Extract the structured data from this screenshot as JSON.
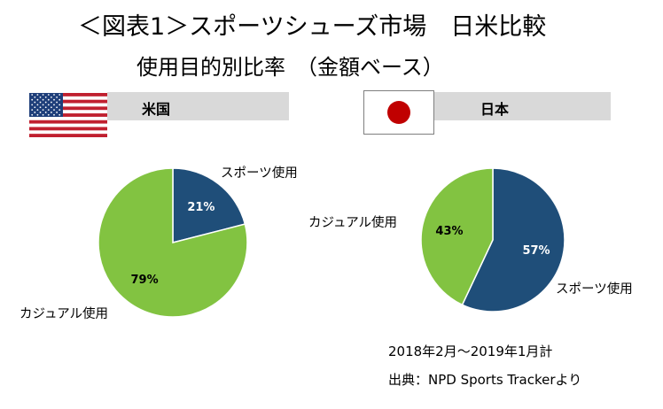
{
  "title": {
    "line1": "＜図表1＞スポーツシューズ市場　日米比較",
    "line2": "使用目的別比率　（金額ベース）"
  },
  "colors": {
    "sports": "#1f4e79",
    "casual": "#82c341",
    "header_bar": "#d9d9d9",
    "jp_flag_red": "#c00000"
  },
  "chart_data": [
    {
      "type": "pie",
      "title": "米国",
      "flag_icon": "us-flag-icon",
      "slices": [
        {
          "label": "スポーツ使用",
          "value": 21,
          "value_label": "21%",
          "color": "#1f4e79"
        },
        {
          "label": "カジュアル使用",
          "value": 79,
          "value_label": "79%",
          "color": "#82c341"
        }
      ]
    },
    {
      "type": "pie",
      "title": "日本",
      "flag_icon": "jp-flag-icon",
      "slices": [
        {
          "label": "スポーツ使用",
          "value": 57,
          "value_label": "57%",
          "color": "#1f4e79"
        },
        {
          "label": "カジュアル使用",
          "value": 43,
          "value_label": "43%",
          "color": "#82c341"
        }
      ]
    }
  ],
  "notes": {
    "period": "2018年2月～2019年1月計",
    "source": "出典：NPD Sports Trackerより"
  }
}
